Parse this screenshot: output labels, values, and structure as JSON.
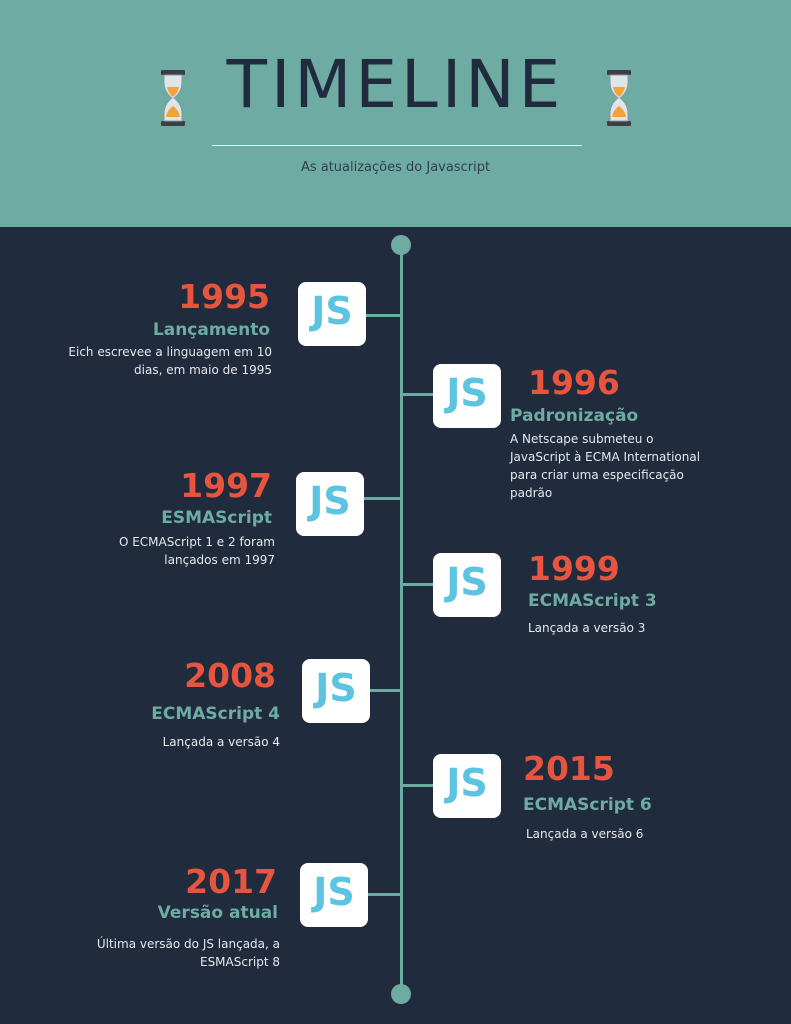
{
  "header": {
    "title": "TIMELINE",
    "subtitle": "As atualizações do Javascript"
  },
  "events": [
    {
      "year": "1995",
      "label": "Lançamento",
      "desc": "Eich escrevee a linguagem em 10 dias, em maio de 1995"
    },
    {
      "year": "1996",
      "label": "Padronização",
      "desc": "A Netscape submeteu o JavaScript à ECMA International para criar uma especificação padrão"
    },
    {
      "year": "1997",
      "label": "ESMAScript",
      "desc": "O ECMAScript 1 e 2 foram lançados em 1997"
    },
    {
      "year": "1999",
      "label": "ECMAScript 3",
      "desc": "Lançada a versão 3"
    },
    {
      "year": "2008",
      "label": "ECMAScript 4",
      "desc": "Lançada a versão 4"
    },
    {
      "year": "2015",
      "label": "ECMAScript 6",
      "desc": "Lançada a versão 6"
    },
    {
      "year": "2017",
      "label": "Versão atual",
      "desc": "Última versão do JS lançada, a ESMAScript 8"
    }
  ],
  "badge": {
    "text": "JS",
    "icon": "javascript-logo-icon"
  },
  "colors": {
    "header_bg": "#6eaca3",
    "body_bg": "#212b3e",
    "accent_year": "#e8553e",
    "accent_label": "#6eaca3",
    "js_text": "#5cc4e0"
  }
}
